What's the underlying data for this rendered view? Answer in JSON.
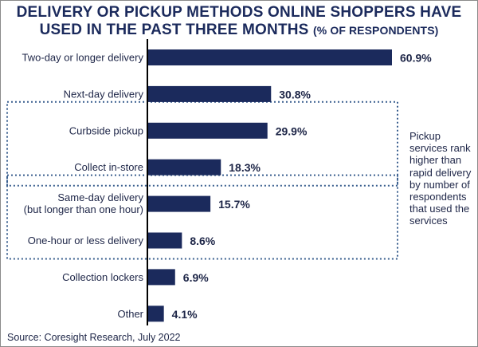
{
  "title_line_1": "DELIVERY OR PICKUP METHODS ONLINE SHOPPERS HAVE",
  "title_line_2": "USED IN THE PAST THREE MONTHS",
  "subtitle": "(% OF RESPONDENTS)",
  "annotation": "Pickup services rank higher than rapid delivery by number of respondents that used the services",
  "source": "Source: Coresight Research, July 2022",
  "colors": {
    "bar": "#1b2a5c",
    "text": "#1d2547",
    "highlight_border": "#3a5f8f",
    "axis": "#000000"
  },
  "chart_data": {
    "type": "bar",
    "orientation": "horizontal",
    "unit": "%",
    "categories": [
      "Two-day or longer delivery",
      "Next-day delivery",
      "Curbside pickup",
      "Collect in-store",
      "Same-day delivery\n(but longer than one hour)",
      "One-hour or less delivery",
      "Collection lockers",
      "Other"
    ],
    "values": [
      60.9,
      30.8,
      29.9,
      18.3,
      15.7,
      8.6,
      6.9,
      4.1
    ],
    "labels": [
      "60.9%",
      "30.8%",
      "29.9%",
      "18.3%",
      "15.7%",
      "8.6%",
      "6.9%",
      "4.1%"
    ],
    "xlim": [
      0,
      60.9
    ],
    "grid": false,
    "legend": "none",
    "highlight_groups": [
      {
        "categories": [
          "Curbside pickup",
          "Collect in-store"
        ],
        "style": "dotted-box"
      },
      {
        "categories": [
          "Same-day delivery\n(but longer than one hour)",
          "One-hour or less delivery"
        ],
        "style": "dotted-box"
      }
    ]
  }
}
